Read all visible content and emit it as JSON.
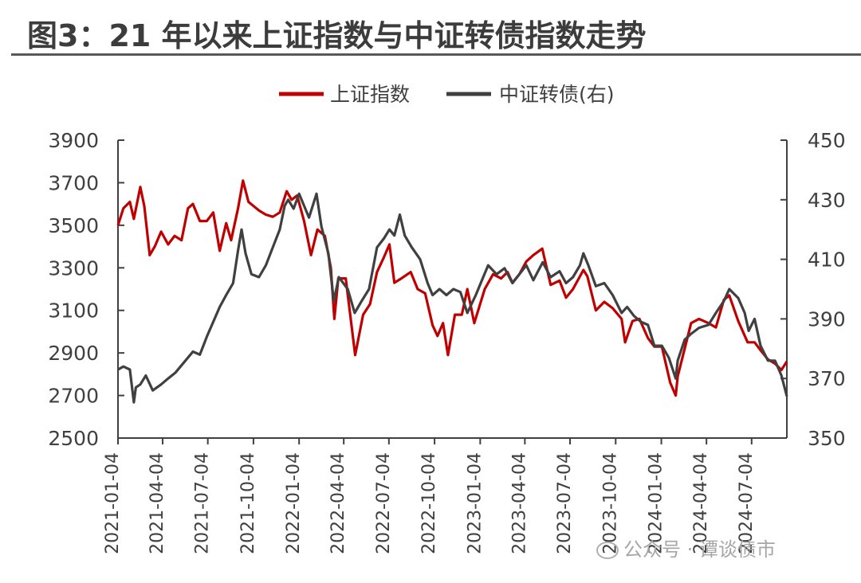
{
  "title": "图3：21 年以来上证指数与中证转债指数走势",
  "watermark": "公众号 · 谭谈债市",
  "colors": {
    "sse": "#c00000",
    "cb": "#404040",
    "axis": "#404040",
    "text": "#404040"
  },
  "chart_data": {
    "type": "line",
    "legend_position": "top",
    "grid": false,
    "x_range": [
      "2021-01-04",
      "2024-09-13"
    ],
    "x_ticks": [
      "2021-01-04",
      "2021-04-04",
      "2021-07-04",
      "2021-10-04",
      "2022-01-04",
      "2022-04-04",
      "2022-07-04",
      "2022-10-04",
      "2023-01-04",
      "2023-04-04",
      "2023-07-04",
      "2023-10-04",
      "2024-01-04",
      "2024-04-04",
      "2024-07-04"
    ],
    "y_left": {
      "min": 2500,
      "max": 3900,
      "ticks": [
        2500,
        2700,
        2900,
        3100,
        3300,
        3500,
        3700,
        3900
      ]
    },
    "y_right": {
      "min": 350,
      "max": 450,
      "ticks": [
        350,
        370,
        390,
        410,
        430,
        450
      ]
    },
    "series": [
      {
        "name": "上证指数",
        "axis": "left",
        "points": [
          [
            "2021-01-04",
            3500
          ],
          [
            "2021-01-15",
            3580
          ],
          [
            "2021-01-28",
            3610
          ],
          [
            "2021-02-05",
            3530
          ],
          [
            "2021-02-18",
            3680
          ],
          [
            "2021-02-26",
            3590
          ],
          [
            "2021-03-09",
            3360
          ],
          [
            "2021-03-19",
            3400
          ],
          [
            "2021-04-01",
            3470
          ],
          [
            "2021-04-15",
            3410
          ],
          [
            "2021-04-28",
            3450
          ],
          [
            "2021-05-12",
            3430
          ],
          [
            "2021-05-25",
            3580
          ],
          [
            "2021-06-04",
            3600
          ],
          [
            "2021-06-18",
            3520
          ],
          [
            "2021-07-02",
            3520
          ],
          [
            "2021-07-15",
            3560
          ],
          [
            "2021-07-28",
            3380
          ],
          [
            "2021-08-10",
            3510
          ],
          [
            "2021-08-20",
            3430
          ],
          [
            "2021-09-03",
            3580
          ],
          [
            "2021-09-13",
            3710
          ],
          [
            "2021-09-24",
            3610
          ],
          [
            "2021-10-15",
            3570
          ],
          [
            "2021-10-29",
            3550
          ],
          [
            "2021-11-12",
            3540
          ],
          [
            "2021-11-26",
            3560
          ],
          [
            "2021-12-10",
            3660
          ],
          [
            "2021-12-20",
            3620
          ],
          [
            "2021-12-31",
            3640
          ],
          [
            "2022-01-14",
            3520
          ],
          [
            "2022-01-28",
            3360
          ],
          [
            "2022-02-10",
            3480
          ],
          [
            "2022-02-25",
            3450
          ],
          [
            "2022-03-09",
            3300
          ],
          [
            "2022-03-16",
            3060
          ],
          [
            "2022-03-24",
            3250
          ],
          [
            "2022-04-08",
            3250
          ],
          [
            "2022-04-27",
            2890
          ],
          [
            "2022-05-13",
            3080
          ],
          [
            "2022-05-27",
            3130
          ],
          [
            "2022-06-10",
            3280
          ],
          [
            "2022-06-24",
            3350
          ],
          [
            "2022-07-05",
            3410
          ],
          [
            "2022-07-15",
            3230
          ],
          [
            "2022-07-29",
            3250
          ],
          [
            "2022-08-17",
            3280
          ],
          [
            "2022-08-31",
            3200
          ],
          [
            "2022-09-15",
            3180
          ],
          [
            "2022-09-30",
            3030
          ],
          [
            "2022-10-10",
            2980
          ],
          [
            "2022-10-21",
            3040
          ],
          [
            "2022-10-31",
            2890
          ],
          [
            "2022-11-14",
            3080
          ],
          [
            "2022-11-28",
            3080
          ],
          [
            "2022-12-09",
            3200
          ],
          [
            "2022-12-23",
            3040
          ],
          [
            "2023-01-13",
            3200
          ],
          [
            "2023-01-30",
            3270
          ],
          [
            "2023-02-15",
            3250
          ],
          [
            "2023-02-28",
            3280
          ],
          [
            "2023-03-10",
            3230
          ],
          [
            "2023-03-24",
            3270
          ],
          [
            "2023-04-07",
            3330
          ],
          [
            "2023-04-21",
            3360
          ],
          [
            "2023-05-09",
            3390
          ],
          [
            "2023-05-26",
            3220
          ],
          [
            "2023-06-13",
            3240
          ],
          [
            "2023-06-26",
            3160
          ],
          [
            "2023-07-10",
            3200
          ],
          [
            "2023-07-31",
            3290
          ],
          [
            "2023-08-08",
            3260
          ],
          [
            "2023-08-25",
            3100
          ],
          [
            "2023-09-11",
            3140
          ],
          [
            "2023-09-28",
            3110
          ],
          [
            "2023-10-16",
            3060
          ],
          [
            "2023-10-23",
            2950
          ],
          [
            "2023-11-07",
            3050
          ],
          [
            "2023-11-21",
            3060
          ],
          [
            "2023-12-08",
            2970
          ],
          [
            "2023-12-21",
            2930
          ],
          [
            "2024-01-05",
            2930
          ],
          [
            "2024-01-22",
            2760
          ],
          [
            "2024-02-02",
            2700
          ],
          [
            "2024-02-06",
            2790
          ],
          [
            "2024-02-20",
            2920
          ],
          [
            "2024-03-04",
            3040
          ],
          [
            "2024-03-20",
            3060
          ],
          [
            "2024-04-08",
            3040
          ],
          [
            "2024-04-23",
            3020
          ],
          [
            "2024-05-09",
            3150
          ],
          [
            "2024-05-20",
            3170
          ],
          [
            "2024-06-07",
            3050
          ],
          [
            "2024-06-26",
            2950
          ],
          [
            "2024-07-10",
            2950
          ],
          [
            "2024-07-23",
            2910
          ],
          [
            "2024-08-06",
            2870
          ],
          [
            "2024-08-20",
            2850
          ],
          [
            "2024-09-02",
            2820
          ],
          [
            "2024-09-13",
            2860
          ]
        ]
      },
      {
        "name": "中证转债(右)",
        "axis": "right",
        "points": [
          [
            "2021-01-04",
            373
          ],
          [
            "2021-01-15",
            374
          ],
          [
            "2021-01-28",
            373
          ],
          [
            "2021-02-05",
            362
          ],
          [
            "2021-02-09",
            367
          ],
          [
            "2021-02-18",
            368
          ],
          [
            "2021-03-01",
            371
          ],
          [
            "2021-03-15",
            366
          ],
          [
            "2021-04-01",
            368
          ],
          [
            "2021-04-15",
            370
          ],
          [
            "2021-04-30",
            372
          ],
          [
            "2021-05-20",
            376
          ],
          [
            "2021-06-04",
            379
          ],
          [
            "2021-06-18",
            378
          ],
          [
            "2021-07-02",
            384
          ],
          [
            "2021-07-15",
            389
          ],
          [
            "2021-07-28",
            394
          ],
          [
            "2021-08-10",
            398
          ],
          [
            "2021-08-24",
            402
          ],
          [
            "2021-09-03",
            413
          ],
          [
            "2021-09-10",
            420
          ],
          [
            "2021-09-18",
            412
          ],
          [
            "2021-09-30",
            405
          ],
          [
            "2021-10-15",
            404
          ],
          [
            "2021-10-29",
            408
          ],
          [
            "2021-11-12",
            414
          ],
          [
            "2021-11-26",
            420
          ],
          [
            "2021-12-06",
            428
          ],
          [
            "2021-12-13",
            430
          ],
          [
            "2021-12-24",
            427
          ],
          [
            "2022-01-04",
            432
          ],
          [
            "2022-01-14",
            428
          ],
          [
            "2022-01-24",
            424
          ],
          [
            "2022-02-08",
            432
          ],
          [
            "2022-02-18",
            421
          ],
          [
            "2022-03-04",
            412
          ],
          [
            "2022-03-15",
            396
          ],
          [
            "2022-03-25",
            404
          ],
          [
            "2022-04-12",
            400
          ],
          [
            "2022-04-26",
            392
          ],
          [
            "2022-05-10",
            396
          ],
          [
            "2022-05-25",
            400
          ],
          [
            "2022-06-10",
            414
          ],
          [
            "2022-06-24",
            417
          ],
          [
            "2022-07-05",
            420
          ],
          [
            "2022-07-15",
            418
          ],
          [
            "2022-07-26",
            425
          ],
          [
            "2022-08-05",
            418
          ],
          [
            "2022-08-19",
            414
          ],
          [
            "2022-09-05",
            410
          ],
          [
            "2022-09-20",
            402
          ],
          [
            "2022-09-30",
            398
          ],
          [
            "2022-10-14",
            400
          ],
          [
            "2022-10-28",
            398
          ],
          [
            "2022-11-11",
            400
          ],
          [
            "2022-11-25",
            399
          ],
          [
            "2022-12-09",
            392
          ],
          [
            "2022-12-26",
            398
          ],
          [
            "2023-01-10",
            404
          ],
          [
            "2023-01-20",
            408
          ],
          [
            "2023-02-06",
            405
          ],
          [
            "2023-02-22",
            407
          ],
          [
            "2023-03-10",
            402
          ],
          [
            "2023-03-24",
            405
          ],
          [
            "2023-04-07",
            408
          ],
          [
            "2023-04-21",
            403
          ],
          [
            "2023-05-10",
            409
          ],
          [
            "2023-05-26",
            404
          ],
          [
            "2023-06-13",
            406
          ],
          [
            "2023-06-26",
            402
          ],
          [
            "2023-07-10",
            404
          ],
          [
            "2023-07-24",
            408
          ],
          [
            "2023-07-31",
            412
          ],
          [
            "2023-08-10",
            408
          ],
          [
            "2023-08-25",
            401
          ],
          [
            "2023-09-11",
            402
          ],
          [
            "2023-09-28",
            398
          ],
          [
            "2023-10-16",
            392
          ],
          [
            "2023-10-27",
            394
          ],
          [
            "2023-11-10",
            391
          ],
          [
            "2023-11-24",
            389
          ],
          [
            "2023-12-08",
            388
          ],
          [
            "2023-12-21",
            381
          ],
          [
            "2024-01-05",
            381
          ],
          [
            "2024-01-19",
            377
          ],
          [
            "2024-02-02",
            370
          ],
          [
            "2024-02-06",
            376
          ],
          [
            "2024-02-20",
            383
          ],
          [
            "2024-03-04",
            385
          ],
          [
            "2024-03-20",
            387
          ],
          [
            "2024-04-08",
            388
          ],
          [
            "2024-04-23",
            392
          ],
          [
            "2024-05-09",
            396
          ],
          [
            "2024-05-20",
            400
          ],
          [
            "2024-06-07",
            397
          ],
          [
            "2024-06-20",
            392
          ],
          [
            "2024-06-28",
            386
          ],
          [
            "2024-07-10",
            390
          ],
          [
            "2024-07-22",
            381
          ],
          [
            "2024-08-06",
            376
          ],
          [
            "2024-08-20",
            376
          ],
          [
            "2024-09-02",
            371
          ],
          [
            "2024-09-13",
            364
          ]
        ]
      }
    ]
  }
}
